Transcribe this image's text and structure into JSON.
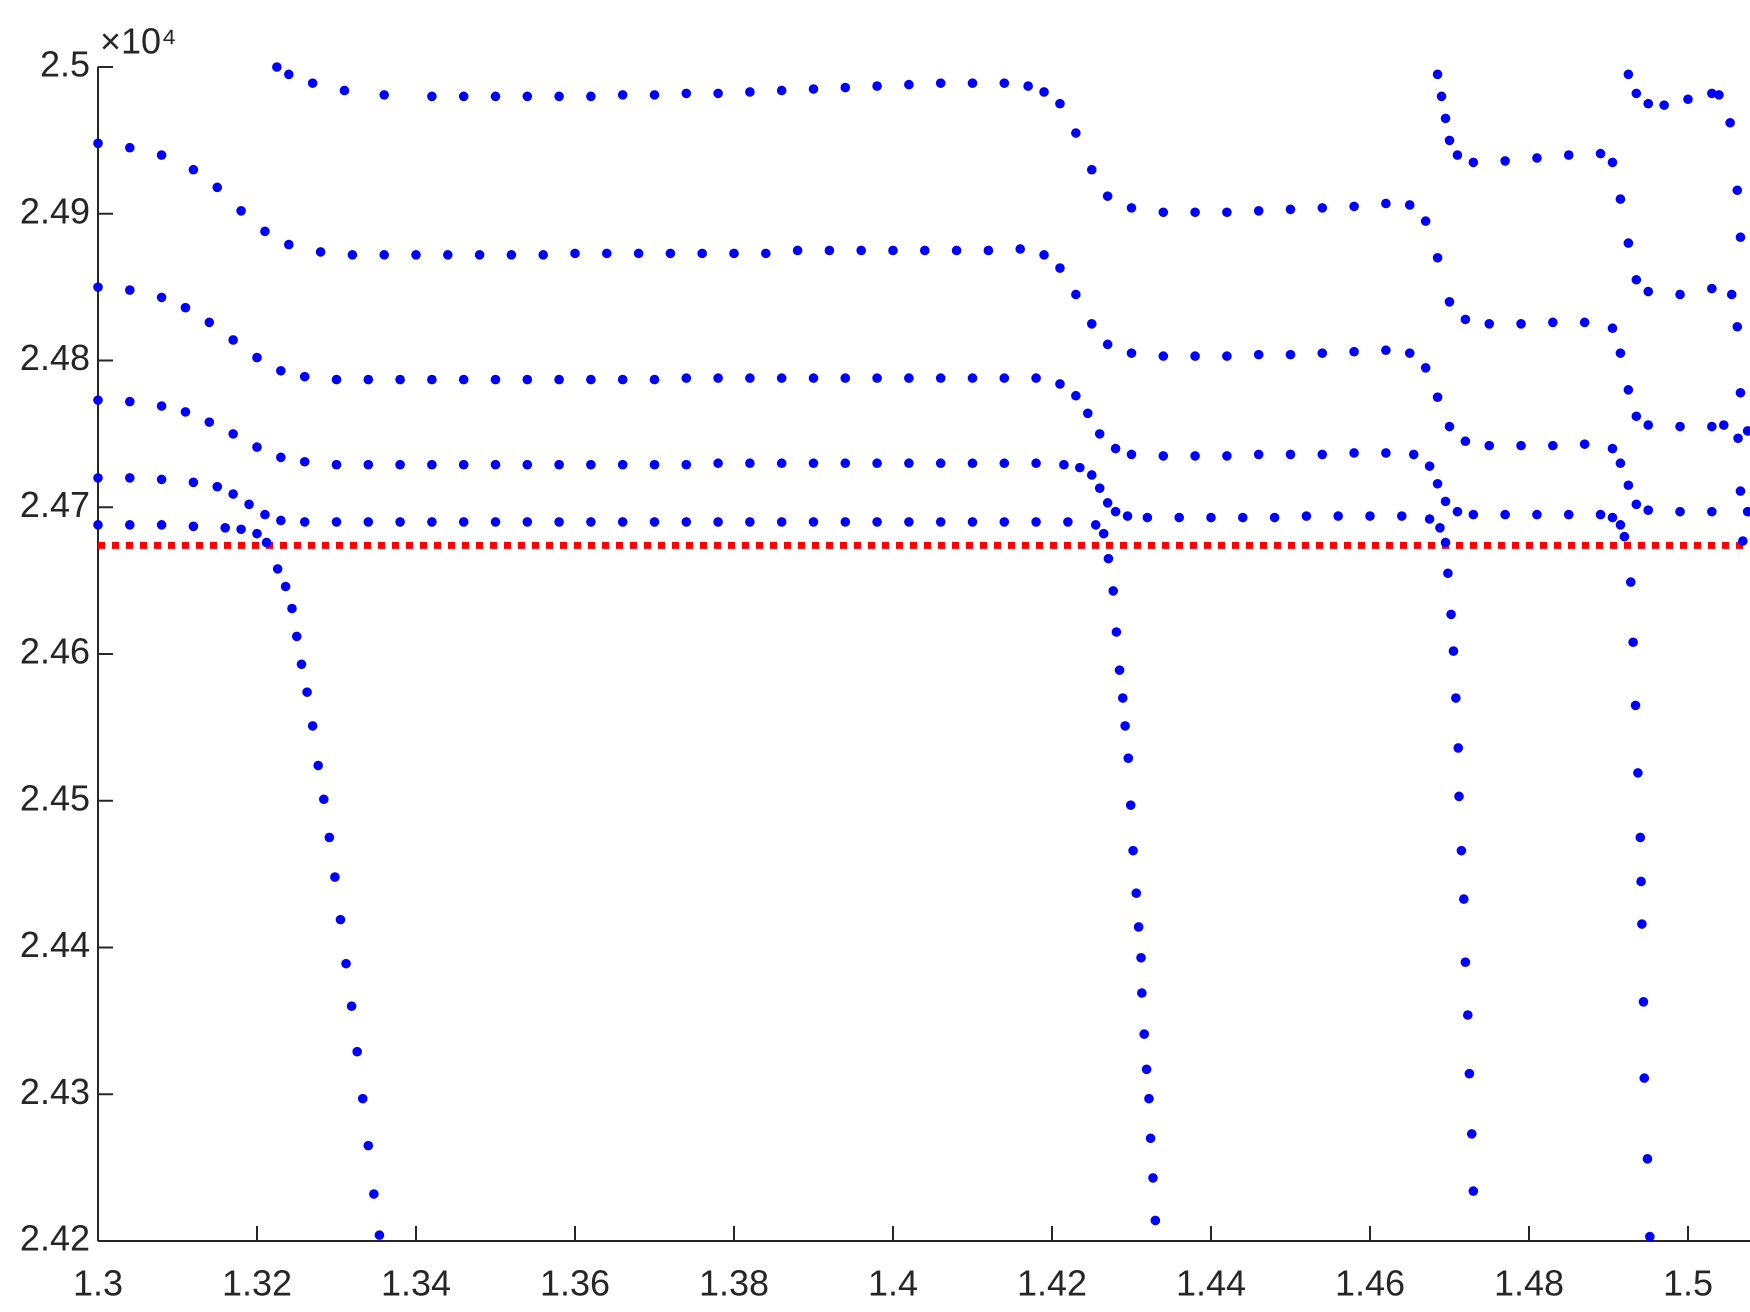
{
  "chart_data": {
    "type": "scatter",
    "y_multiplier": "×10⁴",
    "xlim": [
      1.3,
      1.5078
    ],
    "xticks": [
      1.3,
      1.32,
      1.34,
      1.36,
      1.38,
      1.4,
      1.42,
      1.44,
      1.46,
      1.48,
      1.5
    ],
    "ylim": [
      2.42,
      2.5
    ],
    "yticks": [
      2.42,
      2.43,
      2.44,
      2.45,
      2.46,
      2.47,
      2.48,
      2.49,
      2.5
    ],
    "grid": false,
    "reference_line": {
      "y": 2.4674,
      "color": "#ff0000"
    },
    "series": [
      {
        "color": "#0000ff",
        "x": [
          1.3,
          1.304,
          1.308,
          1.312,
          1.316,
          1.318,
          1.32,
          1.3212,
          1.3226,
          1.3236,
          1.3244,
          1.325,
          1.3256,
          1.3263,
          1.327,
          1.3277,
          1.3284,
          1.3291,
          1.3298,
          1.3305,
          1.3312,
          1.3319,
          1.3326,
          1.3333,
          1.334,
          1.3347,
          1.3354
        ],
        "values": [
          2.4688,
          2.4688,
          2.4688,
          2.4687,
          2.4686,
          2.4685,
          2.4682,
          2.4676,
          2.4658,
          2.4646,
          2.4631,
          2.4612,
          2.4593,
          2.4574,
          2.4551,
          2.4524,
          2.4501,
          2.4475,
          2.4448,
          2.4419,
          2.4389,
          2.436,
          2.4329,
          2.4297,
          2.4265,
          2.4232,
          2.4204
        ]
      },
      {
        "color": "#0000ff",
        "x": [
          1.3,
          1.304,
          1.308,
          1.312,
          1.315,
          1.317,
          1.319,
          1.321,
          1.323,
          1.326,
          1.33,
          1.334,
          1.338,
          1.342,
          1.346,
          1.35,
          1.354,
          1.358,
          1.362,
          1.366,
          1.37,
          1.374,
          1.378,
          1.382,
          1.386,
          1.39,
          1.394,
          1.398,
          1.402,
          1.406,
          1.41,
          1.414,
          1.418,
          1.422,
          1.4255,
          1.4265,
          1.4271,
          1.4277,
          1.4281,
          1.4285,
          1.4289,
          1.4292,
          1.4296,
          1.4299,
          1.4302,
          1.4306,
          1.4309,
          1.4312,
          1.4313,
          1.4316,
          1.4319,
          1.4322,
          1.4324,
          1.4327,
          1.433
        ],
        "values": [
          2.472,
          2.472,
          2.4719,
          2.4717,
          2.4714,
          2.4709,
          2.4702,
          2.4695,
          2.4691,
          2.469,
          2.469,
          2.469,
          2.469,
          2.469,
          2.469,
          2.469,
          2.469,
          2.469,
          2.469,
          2.469,
          2.469,
          2.469,
          2.469,
          2.469,
          2.469,
          2.469,
          2.469,
          2.469,
          2.469,
          2.469,
          2.469,
          2.469,
          2.469,
          2.469,
          2.4688,
          2.4682,
          2.4665,
          2.4643,
          2.4615,
          2.4589,
          2.457,
          2.4551,
          2.4529,
          2.4497,
          2.4466,
          2.4437,
          2.4414,
          2.4393,
          2.4369,
          2.4341,
          2.4317,
          2.4297,
          2.427,
          2.4243,
          2.4214
        ]
      },
      {
        "color": "#0000ff",
        "x": [
          1.3,
          1.304,
          1.308,
          1.311,
          1.314,
          1.317,
          1.32,
          1.323,
          1.326,
          1.33,
          1.334,
          1.338,
          1.342,
          1.346,
          1.35,
          1.354,
          1.358,
          1.362,
          1.366,
          1.37,
          1.374,
          1.378,
          1.382,
          1.386,
          1.39,
          1.394,
          1.398,
          1.402,
          1.406,
          1.41,
          1.414,
          1.418,
          1.4215,
          1.4235,
          1.425,
          1.426,
          1.427,
          1.428,
          1.4295,
          1.432,
          1.436,
          1.44,
          1.444,
          1.448,
          1.452,
          1.456,
          1.46,
          1.464,
          1.4675,
          1.4688,
          1.4695,
          1.4698,
          1.4702,
          1.4705,
          1.4708,
          1.4711,
          1.4712,
          1.4715,
          1.4718,
          1.472,
          1.4723,
          1.4725,
          1.4728,
          1.473
        ],
        "values": [
          2.4773,
          2.4772,
          2.4769,
          2.4765,
          2.4758,
          2.475,
          2.4741,
          2.4734,
          2.4731,
          2.4729,
          2.4729,
          2.4729,
          2.4729,
          2.4729,
          2.4729,
          2.4729,
          2.4729,
          2.4729,
          2.4729,
          2.4729,
          2.4729,
          2.473,
          2.473,
          2.473,
          2.473,
          2.473,
          2.473,
          2.473,
          2.473,
          2.473,
          2.473,
          2.473,
          2.4729,
          2.4727,
          2.4722,
          2.4713,
          2.4703,
          2.4697,
          2.4694,
          2.4693,
          2.4693,
          2.4693,
          2.4693,
          2.4693,
          2.4694,
          2.4694,
          2.4694,
          2.4694,
          2.4692,
          2.4686,
          2.4676,
          2.4655,
          2.4627,
          2.4602,
          2.457,
          2.4536,
          2.4503,
          2.4466,
          2.4433,
          2.439,
          2.4354,
          2.4314,
          2.4273,
          2.4234
        ]
      },
      {
        "color": "#0000ff",
        "x": [
          1.3,
          1.304,
          1.308,
          1.311,
          1.314,
          1.317,
          1.32,
          1.323,
          1.326,
          1.33,
          1.334,
          1.338,
          1.342,
          1.346,
          1.35,
          1.354,
          1.358,
          1.362,
          1.366,
          1.37,
          1.374,
          1.378,
          1.382,
          1.386,
          1.39,
          1.394,
          1.398,
          1.402,
          1.406,
          1.41,
          1.414,
          1.418,
          1.421,
          1.423,
          1.4245,
          1.426,
          1.428,
          1.43,
          1.434,
          1.438,
          1.442,
          1.446,
          1.45,
          1.454,
          1.458,
          1.462,
          1.4655,
          1.4675,
          1.4685,
          1.4695,
          1.471,
          1.473,
          1.477,
          1.481,
          1.485,
          1.489,
          1.4905,
          1.4915,
          1.492,
          1.4928,
          1.4931,
          1.4934,
          1.4937,
          1.494,
          1.4941,
          1.4942,
          1.4944,
          1.4945,
          1.4949,
          1.4952
        ],
        "values": [
          2.485,
          2.4848,
          2.4843,
          2.4836,
          2.4826,
          2.4814,
          2.4802,
          2.4793,
          2.4789,
          2.4787,
          2.4787,
          2.4787,
          2.4787,
          2.4787,
          2.4787,
          2.4787,
          2.4787,
          2.4787,
          2.4787,
          2.4787,
          2.4788,
          2.4788,
          2.4788,
          2.4788,
          2.4788,
          2.4788,
          2.4788,
          2.4788,
          2.4788,
          2.4788,
          2.4788,
          2.4788,
          2.4784,
          2.4776,
          2.4764,
          2.475,
          2.474,
          2.4736,
          2.4735,
          2.4735,
          2.4735,
          2.4736,
          2.4736,
          2.4736,
          2.4737,
          2.4737,
          2.4736,
          2.4728,
          2.4716,
          2.4704,
          2.4697,
          2.4695,
          2.4695,
          2.4695,
          2.4695,
          2.4695,
          2.4693,
          2.4688,
          2.468,
          2.4649,
          2.4608,
          2.4565,
          2.4519,
          2.4475,
          2.4445,
          2.4416,
          2.4363,
          2.4311,
          2.4256,
          2.4203
        ]
      },
      {
        "color": "#0000ff",
        "x": [
          1.3,
          1.304,
          1.308,
          1.312,
          1.315,
          1.318,
          1.321,
          1.324,
          1.328,
          1.332,
          1.336,
          1.34,
          1.344,
          1.348,
          1.352,
          1.356,
          1.36,
          1.364,
          1.368,
          1.372,
          1.376,
          1.38,
          1.384,
          1.388,
          1.392,
          1.396,
          1.4,
          1.404,
          1.408,
          1.412,
          1.416,
          1.419,
          1.421,
          1.423,
          1.425,
          1.427,
          1.43,
          1.434,
          1.438,
          1.442,
          1.446,
          1.45,
          1.454,
          1.458,
          1.462,
          1.465,
          1.467,
          1.4685,
          1.47,
          1.472,
          1.475,
          1.479,
          1.483,
          1.487,
          1.4905,
          1.4915,
          1.4925,
          1.4935,
          1.495,
          1.499,
          1.503,
          1.5075
        ],
        "values": [
          2.4948,
          2.4945,
          2.494,
          2.493,
          2.4918,
          2.4902,
          2.4888,
          2.4879,
          2.4874,
          2.4872,
          2.4872,
          2.4872,
          2.4872,
          2.4872,
          2.4872,
          2.4872,
          2.4873,
          2.4873,
          2.4873,
          2.4873,
          2.4873,
          2.4873,
          2.4873,
          2.4875,
          2.4875,
          2.4875,
          2.4875,
          2.4875,
          2.4875,
          2.4875,
          2.4876,
          2.4872,
          2.4863,
          2.4845,
          2.4825,
          2.4811,
          2.4805,
          2.4803,
          2.4803,
          2.4803,
          2.4804,
          2.4804,
          2.4805,
          2.4806,
          2.4807,
          2.4805,
          2.4795,
          2.4775,
          2.4755,
          2.4745,
          2.4742,
          2.4742,
          2.4742,
          2.4743,
          2.474,
          2.473,
          2.4715,
          2.4702,
          2.4698,
          2.4697,
          2.4697,
          2.4697
        ]
      },
      {
        "color": "#0000ff",
        "x": [
          1.3225,
          1.324,
          1.327,
          1.331,
          1.336,
          1.342,
          1.346,
          1.35,
          1.354,
          1.358,
          1.362,
          1.366,
          1.37,
          1.374,
          1.378,
          1.382,
          1.386,
          1.39,
          1.394,
          1.398,
          1.402,
          1.406,
          1.41,
          1.414,
          1.417,
          1.419,
          1.421,
          1.423,
          1.425,
          1.427,
          1.43,
          1.434,
          1.438,
          1.442,
          1.446,
          1.45,
          1.454,
          1.458,
          1.462,
          1.465,
          1.467,
          1.4685,
          1.47,
          1.472,
          1.475,
          1.479,
          1.483,
          1.487,
          1.4905,
          1.4915,
          1.4925,
          1.4935,
          1.495,
          1.499,
          1.503,
          1.5045,
          1.5075
        ],
        "values": [
          2.5,
          2.4995,
          2.4989,
          2.4984,
          2.4981,
          2.498,
          2.498,
          2.498,
          2.498,
          2.498,
          2.498,
          2.4981,
          2.4981,
          2.4982,
          2.4982,
          2.4983,
          2.4984,
          2.4985,
          2.4986,
          2.4987,
          2.4988,
          2.4989,
          2.4989,
          2.4989,
          2.4987,
          2.4983,
          2.4975,
          2.4955,
          2.493,
          2.4912,
          2.4904,
          2.4901,
          2.4901,
          2.4901,
          2.4902,
          2.4903,
          2.4904,
          2.4905,
          2.4907,
          2.4906,
          2.4895,
          2.487,
          2.484,
          2.4828,
          2.4825,
          2.4825,
          2.4826,
          2.4826,
          2.4822,
          2.4805,
          2.478,
          2.4762,
          2.4756,
          2.4755,
          2.4755,
          2.4756,
          2.4752
        ]
      },
      {
        "color": "#0000ff",
        "x": [
          1.4685,
          1.469,
          1.4695,
          1.47,
          1.471,
          1.473,
          1.477,
          1.481,
          1.485,
          1.489,
          1.4905,
          1.4915,
          1.4925,
          1.4935,
          1.495,
          1.499,
          1.503,
          1.5055
        ],
        "values": [
          2.4995,
          2.498,
          2.4965,
          2.495,
          2.494,
          2.4935,
          2.4936,
          2.4938,
          2.494,
          2.4941,
          2.4935,
          2.491,
          2.488,
          2.4855,
          2.4847,
          2.4845,
          2.4849,
          2.4845
        ]
      },
      {
        "color": "#0000ff",
        "x": [
          1.4925,
          1.4935,
          1.495,
          1.497,
          1.5,
          1.503,
          1.5039,
          1.5053,
          1.5062,
          1.5066,
          1.5062,
          1.5066,
          1.5063,
          1.5066,
          1.5069
        ],
        "values": [
          2.4995,
          2.4982,
          2.4975,
          2.4974,
          2.4978,
          2.4982,
          2.4981,
          2.4962,
          2.4916,
          2.4884,
          2.4823,
          2.4778,
          2.4747,
          2.4711,
          2.4677
        ]
      }
    ]
  }
}
